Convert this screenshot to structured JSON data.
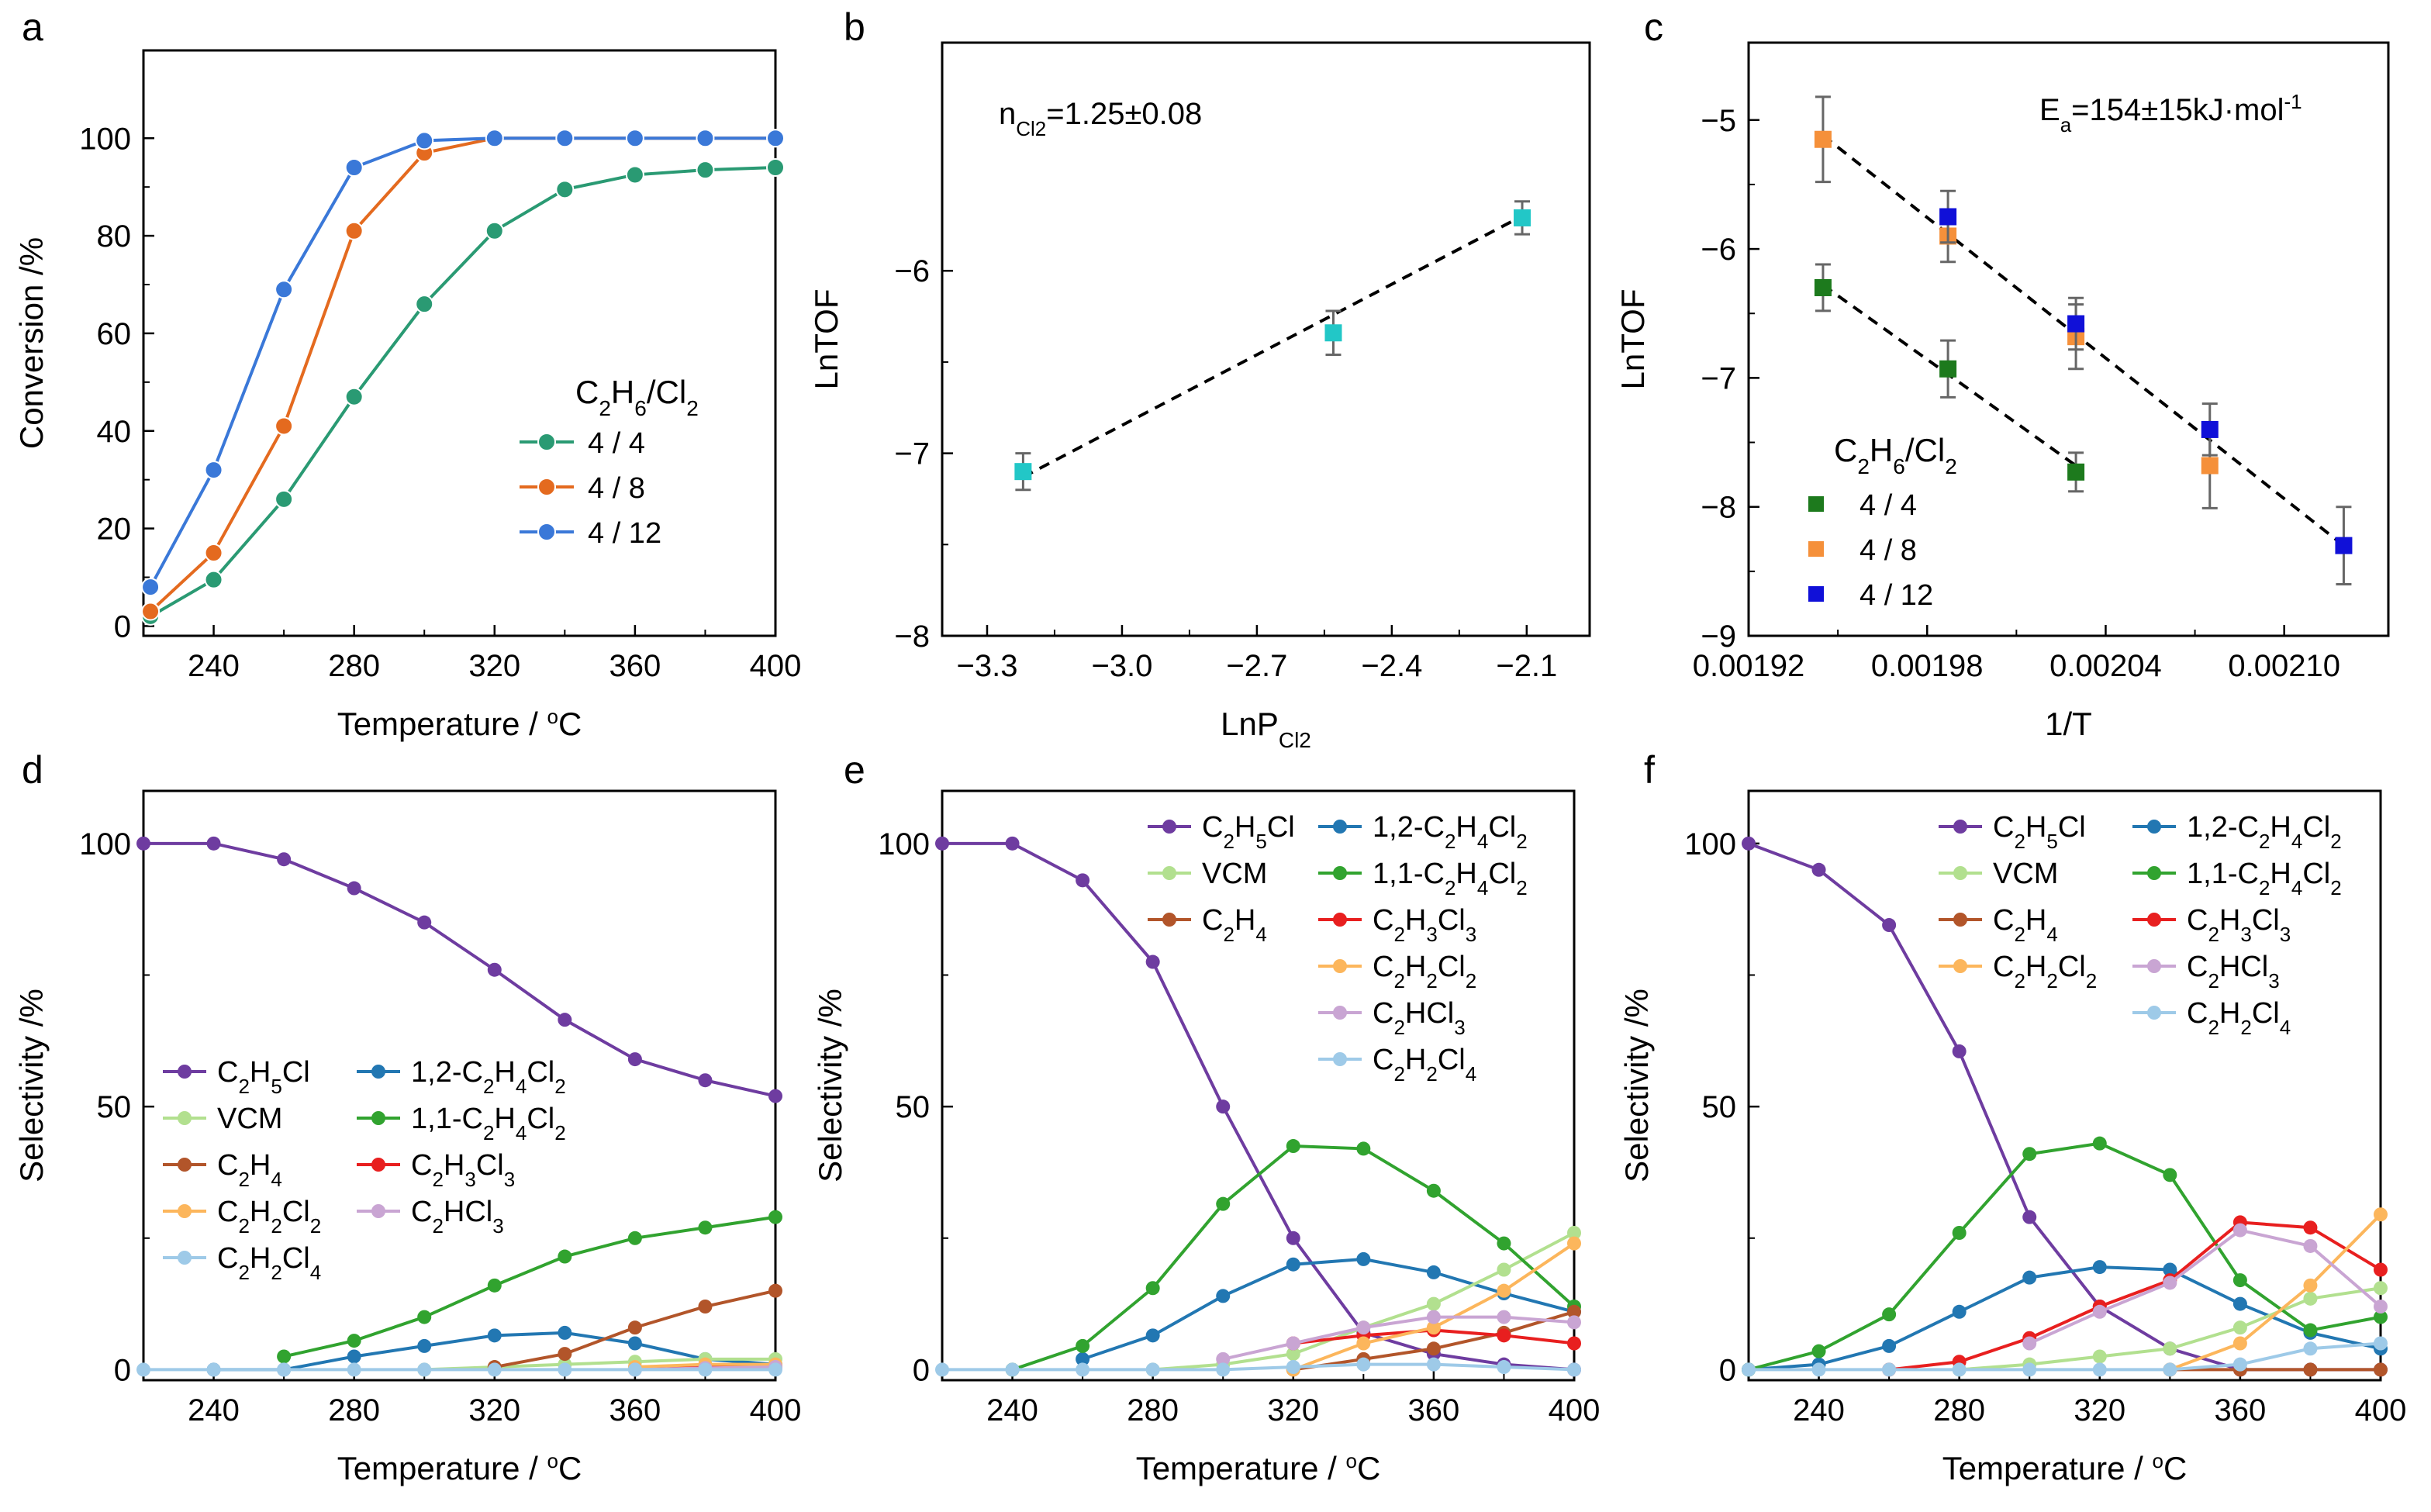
{
  "colors": {
    "green": "#2a9a73",
    "orange": "#e46a1f",
    "blue": "#3a78d8",
    "cyan": "#22c7c7",
    "dkgreen": "#1d7a1d",
    "ltorange": "#f5903a",
    "pureblue": "#1010d8",
    "purple": "#6e3ca0",
    "steel": "#2277b2",
    "lightgreen": "#b2e08f",
    "midgreen": "#31a32f",
    "brown": "#b2552a",
    "red": "#e81f1f",
    "peach": "#fcb65c",
    "lavender": "#c9a5d3",
    "skyblue": "#9ecae8"
  },
  "chart_data": [
    {
      "panel": "a",
      "type": "line",
      "xlabel": "Temperature / °C",
      "ylabel": "Conversion /%",
      "xlim": [
        220,
        400
      ],
      "ylim": [
        -2,
        118
      ],
      "xticks": [
        240,
        280,
        320,
        360,
        400
      ],
      "yticks": [
        0,
        20,
        40,
        60,
        80,
        100
      ],
      "legend_title": "C2H6/Cl2",
      "legend_position": "center-right",
      "x": [
        222,
        240,
        260,
        280,
        300,
        320,
        340,
        360,
        380,
        400
      ],
      "series": [
        {
          "name": "4 / 4",
          "color": "green",
          "values": [
            2,
            9.5,
            26,
            47,
            66,
            81,
            89.5,
            92.5,
            93.5,
            94
          ]
        },
        {
          "name": "4 / 8",
          "color": "orange",
          "values": [
            3,
            15,
            41,
            81,
            97,
            100,
            100,
            100,
            100,
            100
          ]
        },
        {
          "name": "4 / 12",
          "color": "blue",
          "values": [
            8,
            32,
            69,
            94,
            99.5,
            100,
            100,
            100,
            100,
            100
          ]
        }
      ]
    },
    {
      "panel": "b",
      "type": "scatter",
      "xlabel": "LnP",
      "xlabel_sub": "Cl2",
      "ylabel": "LnTOF",
      "xlim": [
        -3.4,
        -1.96
      ],
      "ylim": [
        -8,
        -4.75
      ],
      "xticks": [
        -3.3,
        -3.0,
        -2.7,
        -2.4,
        -2.1
      ],
      "xtick_labels": [
        "−3.3",
        "−3.0",
        "−2.7",
        "−2.4",
        "−2.1"
      ],
      "yticks": [
        -8,
        -7,
        -6
      ],
      "ytick_labels": [
        "−8",
        "−7",
        "−6"
      ],
      "annotation": "1.25±0.08",
      "annotation_prefix": "n",
      "annotation_sub": "Cl2",
      "points": [
        {
          "x": -3.22,
          "y": -7.1,
          "err": 0.1
        },
        {
          "x": -2.53,
          "y": -6.34,
          "err": 0.12
        },
        {
          "x": -2.11,
          "y": -5.71,
          "err": 0.09
        }
      ],
      "fit": {
        "x": [
          -3.22,
          -2.11
        ],
        "y": [
          -7.13,
          -5.7
        ]
      },
      "marker_color": "cyan"
    },
    {
      "panel": "c",
      "type": "scatter",
      "xlabel": "1/T",
      "ylabel": "LnTOF",
      "xlim": [
        0.00192,
        0.002135
      ],
      "ylim": [
        -9,
        -4.4
      ],
      "xticks": [
        0.00192,
        0.00198,
        0.00204,
        0.0021
      ],
      "xtick_labels": [
        "0.00192",
        "0.00198",
        "0.00204",
        "0.00210"
      ],
      "yticks": [
        -9,
        -8,
        -7,
        -6,
        -5
      ],
      "ytick_labels": [
        "−9",
        "−8",
        "−7",
        "−6",
        "−5"
      ],
      "annotation": "154±15kJ·mol",
      "annotation_prefix": "E",
      "annotation_sub": "a",
      "annotation_sup": "-1",
      "legend_title": "C2H6/Cl2",
      "series": [
        {
          "name": "4 / 4",
          "color": "dkgreen",
          "points": [
            [
              0.001945,
              -6.3,
              0.18
            ],
            [
              0.001987,
              -6.93,
              0.22
            ],
            [
              0.00203,
              -7.73,
              0.15
            ]
          ],
          "fit": [
            [
              0.001945,
              -6.28
            ],
            [
              0.00203,
              -7.68
            ]
          ]
        },
        {
          "name": "4 / 8",
          "color": "ltorange",
          "points": [
            [
              0.001945,
              -5.15,
              0.33
            ],
            [
              0.001987,
              -5.9,
              0.2
            ],
            [
              0.00203,
              -6.68,
              0.25
            ],
            [
              0.002075,
              -7.68,
              0.33
            ]
          ],
          "fit": [
            [
              0.001945,
              -5.12
            ],
            [
              0.00212,
              -8.3
            ]
          ]
        },
        {
          "name": "4 / 12",
          "color": "pureblue",
          "points": [
            [
              0.001987,
              -5.75,
              0.2
            ],
            [
              0.00203,
              -6.58,
              0.2
            ],
            [
              0.002075,
              -7.4,
              0.2
            ],
            [
              0.00212,
              -8.3,
              0.3
            ]
          ]
        }
      ]
    },
    {
      "panel": "d",
      "type": "line",
      "xlabel": "Temperature / °C",
      "ylabel": "Selectivity /%",
      "xlim": [
        220,
        400
      ],
      "ylim": [
        -2,
        110
      ],
      "xticks": [
        240,
        280,
        320,
        360,
        400
      ],
      "yticks": [
        0,
        50,
        100
      ],
      "legend_position": "left-center",
      "x": [
        220,
        240,
        260,
        280,
        300,
        320,
        340,
        360,
        380,
        400
      ],
      "series": [
        {
          "name": "C2H5Cl",
          "color": "purple",
          "values": [
            100,
            100,
            97,
            91.5,
            85,
            76,
            66.5,
            59,
            55,
            52
          ]
        },
        {
          "name": "1,2-C2H4Cl2",
          "color": "steel",
          "values": [
            null,
            0,
            0,
            2.5,
            4.5,
            6.5,
            7,
            5,
            2,
            1
          ]
        },
        {
          "name": "VCM",
          "color": "lightgreen",
          "values": [
            null,
            null,
            null,
            null,
            0,
            0.5,
            1,
            1.5,
            2,
            2
          ]
        },
        {
          "name": "1,1-C2H4Cl2",
          "color": "midgreen",
          "values": [
            null,
            null,
            2.5,
            5.5,
            10,
            16,
            21.5,
            25,
            27,
            29
          ]
        },
        {
          "name": "C2H4",
          "color": "brown",
          "values": [
            null,
            null,
            null,
            null,
            null,
            0.5,
            3,
            8,
            12,
            15
          ]
        },
        {
          "name": "C2H3Cl3",
          "color": "red",
          "values": [
            null,
            null,
            null,
            null,
            null,
            null,
            null,
            0.2,
            0.5,
            0.5
          ]
        },
        {
          "name": "C2H2Cl2",
          "color": "peach",
          "values": [
            null,
            null,
            null,
            null,
            null,
            null,
            null,
            0.5,
            1,
            1
          ]
        },
        {
          "name": "C2HCl3",
          "color": "lavender",
          "values": [
            null,
            null,
            null,
            null,
            null,
            null,
            null,
            0,
            0.3,
            0.5
          ]
        },
        {
          "name": "C2H2Cl4",
          "color": "skyblue",
          "values": [
            0,
            0,
            0,
            0,
            0,
            0,
            0,
            0,
            0,
            0
          ]
        }
      ]
    },
    {
      "panel": "e",
      "type": "line",
      "xlabel": "Temperature / °C",
      "ylabel": "Selectivity /%",
      "xlim": [
        220,
        400
      ],
      "ylim": [
        -2,
        110
      ],
      "xticks": [
        240,
        280,
        320,
        360,
        400
      ],
      "yticks": [
        0,
        50,
        100
      ],
      "legend_position": "top-right",
      "x": [
        220,
        240,
        260,
        280,
        300,
        320,
        340,
        360,
        380,
        400
      ],
      "series": [
        {
          "name": "C2H5Cl",
          "color": "purple",
          "values": [
            100,
            100,
            93,
            77.5,
            50,
            25,
            7,
            3,
            1,
            0
          ]
        },
        {
          "name": "1,2-C2H4Cl2",
          "color": "steel",
          "values": [
            null,
            null,
            2,
            6.5,
            14,
            20,
            21,
            18.5,
            14.5,
            11
          ]
        },
        {
          "name": "VCM",
          "color": "lightgreen",
          "values": [
            null,
            null,
            null,
            0,
            1,
            3,
            8,
            12.5,
            19,
            26
          ]
        },
        {
          "name": "1,1-C2H4Cl2",
          "color": "midgreen",
          "values": [
            null,
            0,
            4.5,
            15.5,
            31.5,
            42.5,
            42,
            34,
            24,
            12
          ]
        },
        {
          "name": "C2H4",
          "color": "brown",
          "values": [
            null,
            null,
            null,
            null,
            null,
            0,
            2,
            4,
            7,
            11
          ]
        },
        {
          "name": "C2H3Cl3",
          "color": "red",
          "values": [
            null,
            null,
            null,
            null,
            null,
            5,
            6.5,
            7.5,
            6.5,
            5
          ]
        },
        {
          "name": "C2H2Cl2",
          "color": "peach",
          "values": [
            null,
            null,
            null,
            null,
            null,
            0,
            5,
            8,
            15,
            24
          ]
        },
        {
          "name": "C2HCl3",
          "color": "lavender",
          "values": [
            null,
            null,
            null,
            null,
            2,
            5,
            8,
            10,
            10,
            9
          ]
        },
        {
          "name": "C2H2Cl4",
          "color": "skyblue",
          "values": [
            0,
            0,
            0,
            0,
            0,
            0.5,
            1,
            1,
            0.5,
            0
          ]
        }
      ]
    },
    {
      "panel": "f",
      "type": "line",
      "xlabel": "Temperature / °C",
      "ylabel": "Selectivity /%",
      "xlim": [
        220,
        400
      ],
      "ylim": [
        -2,
        110
      ],
      "xticks": [
        240,
        280,
        320,
        360,
        400
      ],
      "yticks": [
        0,
        50,
        100
      ],
      "legend_position": "top-right",
      "x": [
        220,
        240,
        260,
        280,
        300,
        320,
        340,
        360,
        380,
        400
      ],
      "series": [
        {
          "name": "C2H5Cl",
          "color": "purple",
          "values": [
            100,
            95,
            84.5,
            60.5,
            29,
            12,
            4,
            0,
            0,
            0
          ]
        },
        {
          "name": "1,2-C2H4Cl2",
          "color": "steel",
          "values": [
            0,
            1,
            4.5,
            11,
            17.5,
            19.5,
            19,
            12.5,
            7,
            4
          ]
        },
        {
          "name": "VCM",
          "color": "lightgreen",
          "values": [
            null,
            null,
            null,
            0,
            1,
            2.5,
            4,
            8,
            13.5,
            15.5
          ]
        },
        {
          "name": "1,1-C2H4Cl2",
          "color": "midgreen",
          "values": [
            0,
            3.5,
            10.5,
            26,
            41,
            43,
            37,
            17,
            7.5,
            10
          ]
        },
        {
          "name": "C2H4",
          "color": "brown",
          "values": [
            null,
            null,
            null,
            null,
            null,
            null,
            0,
            0,
            0,
            0
          ]
        },
        {
          "name": "C2H3Cl3",
          "color": "red",
          "values": [
            null,
            null,
            0,
            1.5,
            6,
            12,
            17,
            28,
            27,
            19
          ]
        },
        {
          "name": "C2H2Cl2",
          "color": "peach",
          "values": [
            null,
            null,
            null,
            null,
            null,
            null,
            0,
            5,
            16,
            29.5
          ]
        },
        {
          "name": "C2HCl3",
          "color": "lavender",
          "values": [
            null,
            null,
            null,
            null,
            5,
            11,
            16.5,
            26.5,
            23.5,
            12
          ]
        },
        {
          "name": "C2H2Cl4",
          "color": "skyblue",
          "values": [
            0,
            0,
            0,
            0,
            0,
            0,
            0,
            1,
            4,
            5
          ]
        }
      ]
    }
  ]
}
